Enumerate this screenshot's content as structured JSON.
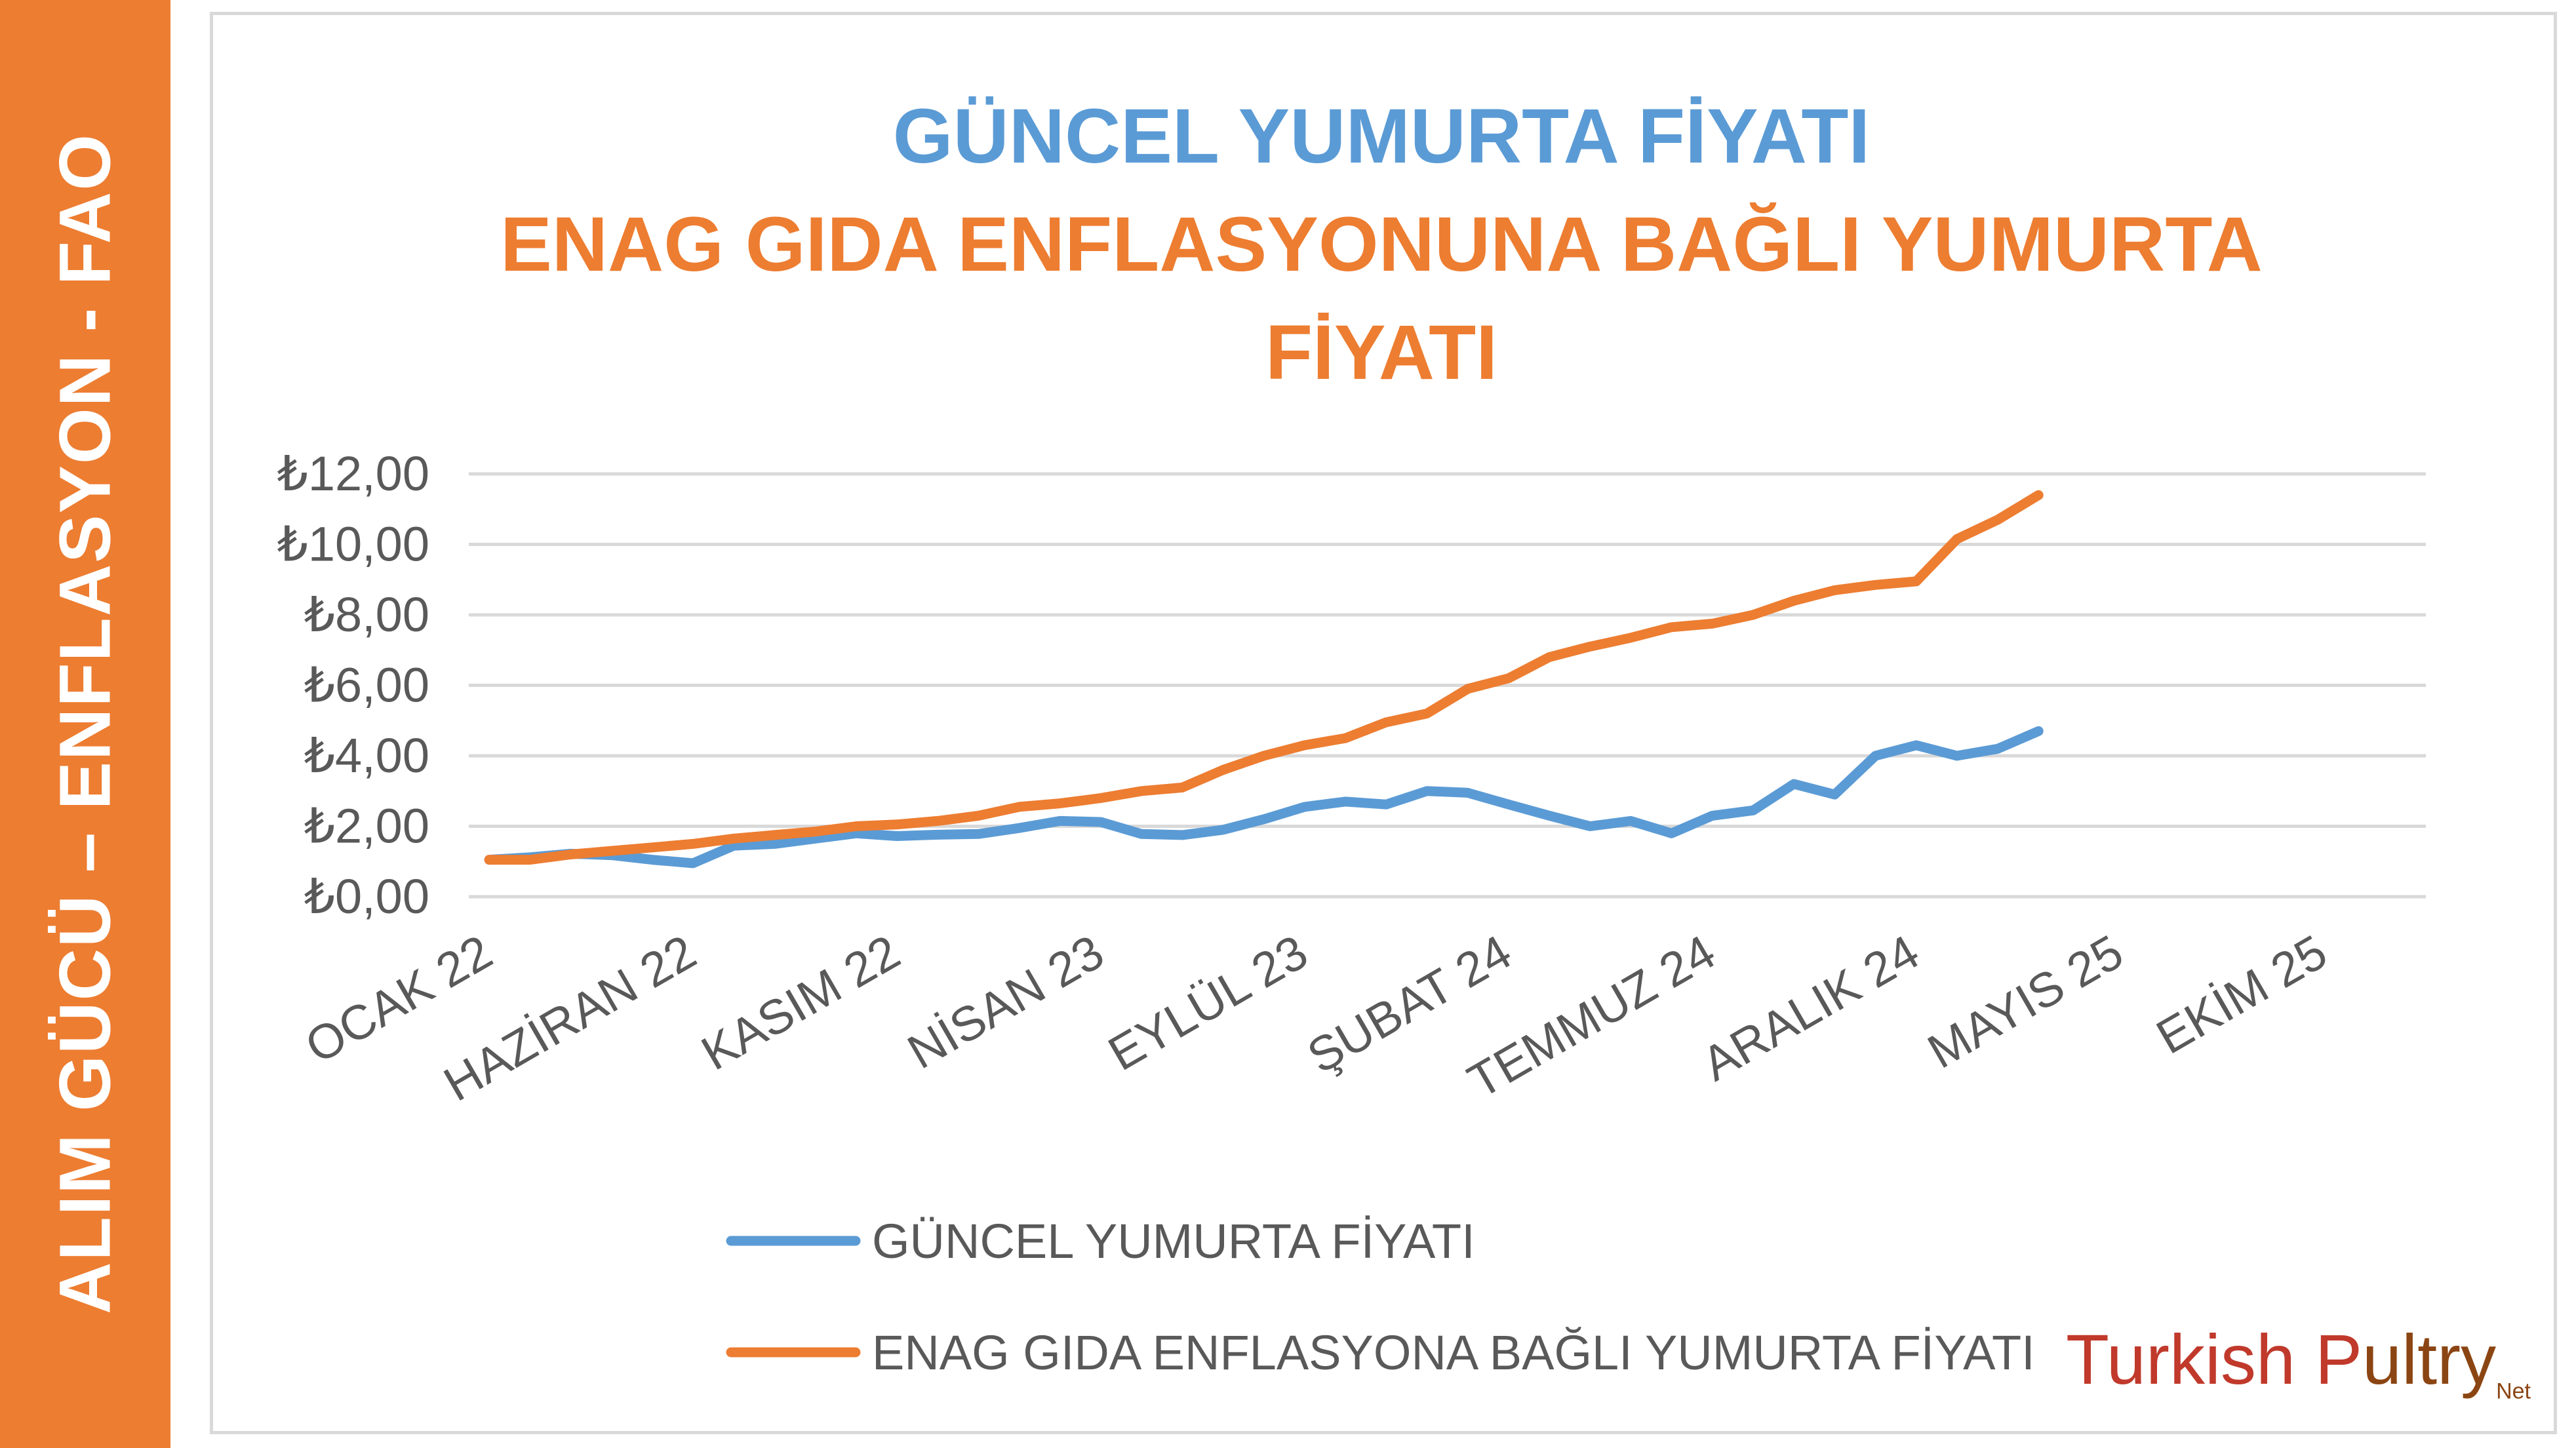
{
  "sidebar": {
    "text": "ALIM GÜCÜ – ENFLASYON - FAO"
  },
  "logo": {
    "part1": "Turkish P",
    "part2": "ultry",
    "suffix": "Net"
  },
  "colors": {
    "blue": "#5B9BD5",
    "orange": "#ED7D31",
    "sidebar": "#ED7D31"
  },
  "chart_data": {
    "type": "line",
    "title_line1": "GÜNCEL YUMURTA FİYATI",
    "title_line2": "ENAG GIDA ENFLASYONUNA BAĞLI YUMURTA",
    "title_line3": "FİYATI",
    "ylim": [
      0,
      12
    ],
    "yticks": [
      "₺0,00",
      "₺2,00",
      "₺4,00",
      "₺6,00",
      "₺8,00",
      "₺10,00",
      "₺12,00"
    ],
    "xlim": [
      "Ocak 22",
      "Aralık 25"
    ],
    "xticks": [
      "OCAK 22",
      "HAZİRAN 22",
      "KASIM 22",
      "NİSAN 23",
      "EYLÜL 23",
      "ŞUBAT 24",
      "TEMMUZ 24",
      "ARALIK 24",
      "MAYIS 25",
      "EKİM 25"
    ],
    "grid": true,
    "legend": "bottom",
    "series": [
      {
        "name": "GÜNCEL YUMURTA FİYATI",
        "color": "#5B9BD5",
        "values": [
          1.05,
          1.12,
          1.22,
          1.18,
          1.05,
          0.95,
          1.45,
          1.5,
          1.65,
          1.8,
          1.72,
          1.76,
          1.78,
          1.95,
          2.15,
          2.12,
          1.78,
          1.75,
          1.9,
          2.2,
          2.55,
          2.7,
          2.62,
          3.0,
          2.95,
          2.62,
          2.3,
          2.0,
          2.15,
          1.8,
          2.3,
          2.45,
          3.2,
          2.9,
          4.0,
          4.3,
          4.0,
          4.2,
          4.7
        ]
      },
      {
        "name": "ENAG GIDA ENFLASYONA BAĞLI YUMURTA FİYATI",
        "color": "#ED7D31",
        "values": [
          1.05,
          1.05,
          1.2,
          1.3,
          1.4,
          1.5,
          1.65,
          1.75,
          1.85,
          2.0,
          2.05,
          2.15,
          2.3,
          2.55,
          2.65,
          2.8,
          3.0,
          3.1,
          3.6,
          4.0,
          4.3,
          4.5,
          4.95,
          5.2,
          5.9,
          6.2,
          6.8,
          7.1,
          7.35,
          7.65,
          7.75,
          8.0,
          8.4,
          8.7,
          8.85,
          8.95,
          10.15,
          10.7,
          11.4
        ]
      }
    ]
  }
}
